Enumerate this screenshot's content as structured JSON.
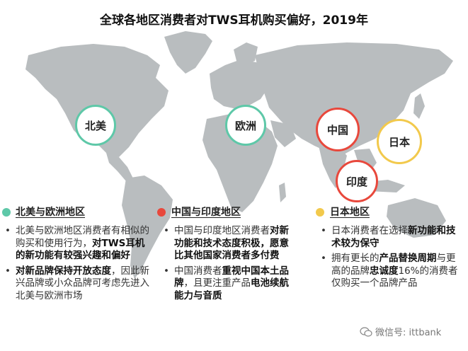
{
  "title": "全球各地区消费者对TWS耳机购买偏好，2019年",
  "colors": {
    "north_america_europe": "#5ec8a8",
    "china_india": "#e8483c",
    "japan": "#f2c94c",
    "map": "#b9bdbf"
  },
  "map_labels": {
    "north_america": "北美",
    "europe": "欧洲",
    "china": "中国",
    "japan": "日本",
    "india": "印度"
  },
  "sections": [
    {
      "title": "北美与欧洲地区",
      "bullets": [
        [
          {
            "t": "北美与欧洲地区消费者有相似的购买和使用行为，",
            "b": false
          },
          {
            "t": "对TWS耳机的新功能有较强兴趣和偏好",
            "b": true
          }
        ],
        [
          {
            "t": "对新品牌保持开放态度",
            "b": true
          },
          {
            "t": "，因此新兴品牌或小众品牌可考虑先进入北美与欧洲市场",
            "b": false
          }
        ]
      ]
    },
    {
      "title": "中国与印度地区",
      "bullets": [
        [
          {
            "t": "中国与印度地区消费者",
            "b": false
          },
          {
            "t": "对新功能和技术态度积极，愿意比其他国家消费者多付费",
            "b": true
          }
        ],
        [
          {
            "t": "中国消费者",
            "b": false
          },
          {
            "t": "重视中国本土品牌",
            "b": true
          },
          {
            "t": "，且更注重产品",
            "b": false
          },
          {
            "t": "电池续航能力与音质",
            "b": true
          }
        ]
      ]
    },
    {
      "title": "日本地区",
      "bullets": [
        [
          {
            "t": "日本消费者在选择",
            "b": false
          },
          {
            "t": "新功能和技术较为保守",
            "b": true
          }
        ],
        [
          {
            "t": "拥有更长的",
            "b": false
          },
          {
            "t": "产品替换周期",
            "b": true
          },
          {
            "t": "与更高的品牌",
            "b": false
          },
          {
            "t": "忠诚度",
            "b": true
          },
          {
            "t": "16%的消费者仅购买一个品牌产品",
            "b": false
          }
        ]
      ]
    }
  ],
  "watermark": "微信号: ittbank"
}
